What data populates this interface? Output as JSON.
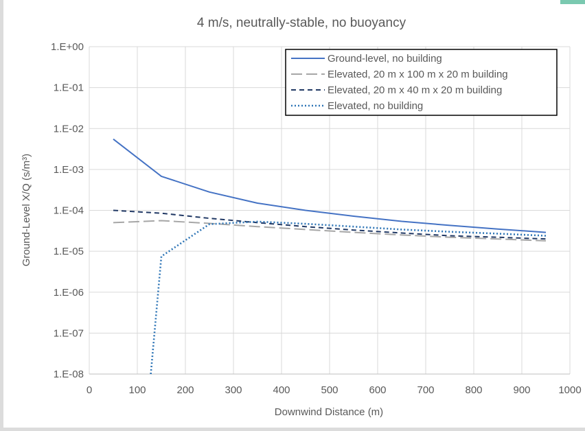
{
  "chart_data": {
    "type": "line",
    "title": "4 m/s, neutrally-stable, no buoyancy",
    "xlabel": "Downwind Distance (m)",
    "ylabel": "Ground-Level X/Q (s/m³)",
    "xlim": [
      0,
      1000
    ],
    "ylim": [
      1e-08,
      1
    ],
    "y_scale": "log",
    "grid": true,
    "legend_position": "top-right",
    "x_ticks": [
      "0",
      "100",
      "200",
      "300",
      "400",
      "500",
      "600",
      "700",
      "800",
      "900",
      "1000"
    ],
    "y_ticks": [
      "1.E-08",
      "1.E-07",
      "1.E-06",
      "1.E-05",
      "1.E-04",
      "1.E-03",
      "1.E-02",
      "1.E-01",
      "1.E+00"
    ],
    "series": [
      {
        "name": "Ground-level, no building",
        "color": "#4472c4",
        "style": "solid",
        "x": [
          50,
          150,
          250,
          350,
          450,
          550,
          650,
          750,
          850,
          950
        ],
        "y": [
          0.0055,
          0.00068,
          0.00028,
          0.00015,
          0.0001,
          7.2e-05,
          5.4e-05,
          4.3e-05,
          3.5e-05,
          2.9e-05
        ]
      },
      {
        "name": "Elevated, 20 m x 100 m x 20 m building",
        "color": "#a6a6a6",
        "style": "longdash",
        "x": [
          50,
          150,
          250,
          350,
          450,
          550,
          650,
          750,
          850,
          950
        ],
        "y": [
          5e-05,
          5.6e-05,
          4.8e-05,
          4e-05,
          3.4e-05,
          2.9e-05,
          2.5e-05,
          2.2e-05,
          2e-05,
          1.8e-05
        ]
      },
      {
        "name": "Elevated, 20 m x 40 m x 20 m building",
        "color": "#203864",
        "style": "dash",
        "x": [
          50,
          150,
          250,
          350,
          450,
          550,
          650,
          750,
          850,
          950
        ],
        "y": [
          0.0001,
          8.5e-05,
          6.4e-05,
          5e-05,
          4e-05,
          3.3e-05,
          2.8e-05,
          2.4e-05,
          2.2e-05,
          2e-05
        ]
      },
      {
        "name": "Elevated, no building",
        "color": "#2e75b6",
        "style": "dot",
        "x": [
          128,
          150,
          250,
          350,
          450,
          550,
          650,
          750,
          850,
          950
        ],
        "y": [
          1e-08,
          7.5e-06,
          4.6e-05,
          5.3e-05,
          4.7e-05,
          4e-05,
          3.4e-05,
          3e-05,
          2.7e-05,
          2.4e-05
        ]
      }
    ]
  }
}
